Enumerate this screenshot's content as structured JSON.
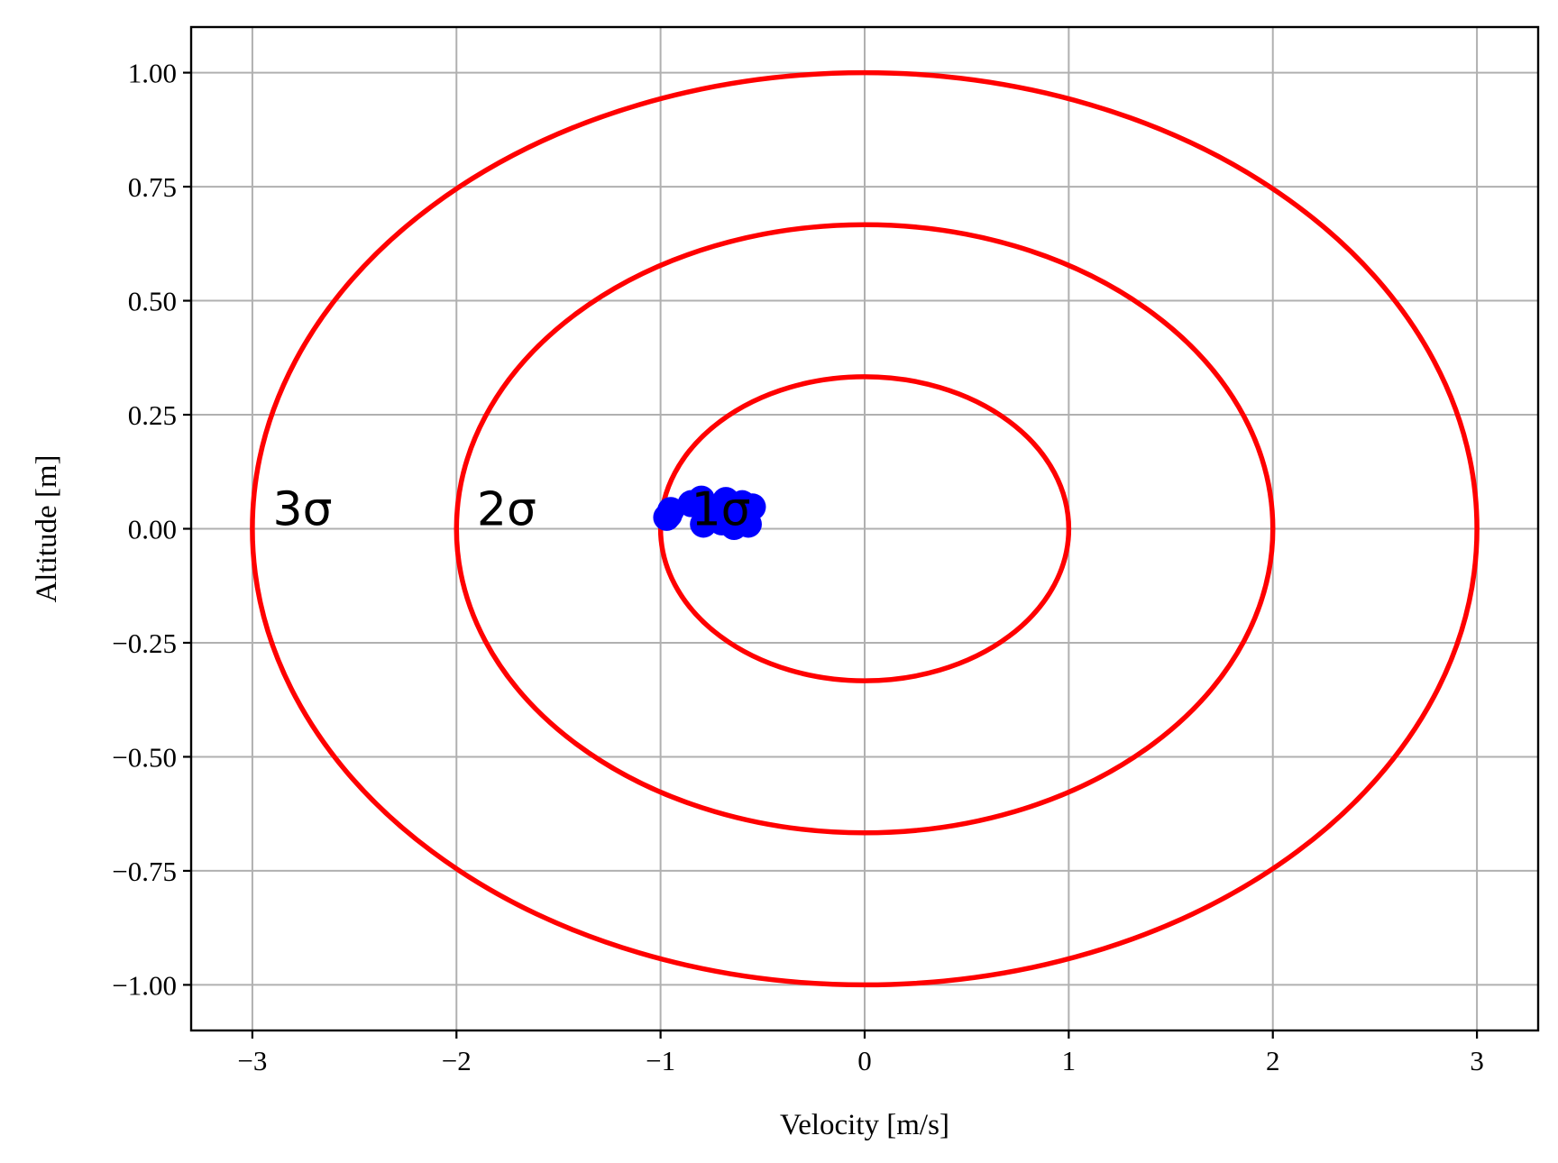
{
  "chart_data": {
    "type": "scatter",
    "xlabel": "Velocity [m/s]",
    "ylabel": "Altitude [m]",
    "xlim": [
      -3.3,
      3.3
    ],
    "ylim": [
      -1.1,
      1.1
    ],
    "grid": true,
    "xticks": [
      -3,
      -2,
      -1,
      0,
      1,
      2,
      3
    ],
    "xtick_labels": [
      "−3",
      "−2",
      "−1",
      "0",
      "1",
      "2",
      "3"
    ],
    "yticks": [
      1.0,
      0.75,
      0.5,
      0.25,
      0.0,
      -0.25,
      -0.5,
      -0.75,
      -1.0
    ],
    "ytick_labels": [
      "1.00",
      "0.75",
      "0.50",
      "0.25",
      "0.00",
      "−0.25",
      "−0.50",
      "−0.75",
      "−1.00"
    ],
    "ellipses": [
      {
        "label": "1σ",
        "cx": 0,
        "cy": 0,
        "rx": 1,
        "ry": 0.3333,
        "label_x": -0.85,
        "label_y": 0.0
      },
      {
        "label": "2σ",
        "cx": 0,
        "cy": 0,
        "rx": 2,
        "ry": 0.6667,
        "label_x": -1.9,
        "label_y": 0.0
      },
      {
        "label": "3σ",
        "cx": 0,
        "cy": 0,
        "rx": 3,
        "ry": 1.0,
        "label_x": -2.9,
        "label_y": 0.0
      }
    ],
    "ellipse_color": "#ff0000",
    "points": [
      {
        "x": -0.96,
        "y": 0.03
      },
      {
        "x": -0.95,
        "y": 0.04
      },
      {
        "x": -0.97,
        "y": 0.025
      },
      {
        "x": -0.85,
        "y": 0.055
      },
      {
        "x": -0.8,
        "y": 0.065
      },
      {
        "x": -0.78,
        "y": 0.045
      },
      {
        "x": -0.76,
        "y": 0.02
      },
      {
        "x": -0.79,
        "y": 0.01
      },
      {
        "x": -0.72,
        "y": 0.035
      },
      {
        "x": -0.7,
        "y": 0.015
      },
      {
        "x": -0.68,
        "y": 0.062
      },
      {
        "x": -0.66,
        "y": 0.04
      },
      {
        "x": -0.64,
        "y": 0.005
      },
      {
        "x": -0.62,
        "y": 0.03
      },
      {
        "x": -0.6,
        "y": 0.055
      },
      {
        "x": -0.58,
        "y": 0.02
      },
      {
        "x": -0.57,
        "y": 0.01
      },
      {
        "x": -0.55,
        "y": 0.048
      }
    ],
    "point_color": "#0000ff"
  }
}
